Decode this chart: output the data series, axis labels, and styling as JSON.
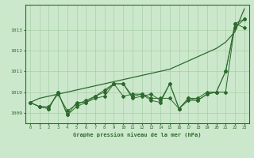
{
  "x": [
    0,
    1,
    2,
    3,
    4,
    5,
    6,
    7,
    8,
    9,
    10,
    11,
    12,
    13,
    14,
    15,
    16,
    17,
    18,
    19,
    20,
    21,
    22,
    23
  ],
  "series1": [
    1009.5,
    1009.3,
    1009.2,
    1010.0,
    1008.9,
    1009.3,
    1009.5,
    1009.7,
    1009.8,
    1010.4,
    1010.4,
    1009.7,
    1009.8,
    1009.9,
    1009.6,
    1010.4,
    1009.2,
    1009.7,
    1009.6,
    1009.9,
    1010.0,
    1011.0,
    1013.3,
    1013.1
  ],
  "series2": [
    1009.5,
    1009.3,
    1009.3,
    1009.9,
    1009.1,
    1009.4,
    1009.6,
    1009.8,
    1010.1,
    1010.4,
    1009.8,
    1009.9,
    1009.9,
    1009.7,
    1009.7,
    1009.7,
    1009.2,
    1009.7,
    1009.7,
    1010.0,
    1010.0,
    1011.0,
    1013.1,
    1013.5
  ],
  "series3": [
    1009.5,
    1009.3,
    1009.2,
    1010.0,
    1008.9,
    1009.5,
    1009.5,
    1009.8,
    1010.0,
    1010.4,
    1010.4,
    1009.8,
    1009.9,
    1009.6,
    1009.5,
    1010.4,
    1009.2,
    1009.6,
    1009.6,
    1009.9,
    1010.0,
    1010.0,
    1013.3,
    1013.5
  ],
  "trend": [
    1009.5,
    1009.7,
    1009.8,
    1009.9,
    1010.0,
    1010.1,
    1010.2,
    1010.3,
    1010.4,
    1010.5,
    1010.6,
    1010.7,
    1010.8,
    1010.9,
    1011.0,
    1011.1,
    1011.3,
    1011.5,
    1011.7,
    1011.9,
    1012.1,
    1012.4,
    1012.9,
    1014.0
  ],
  "line_color": "#2d6a2d",
  "bg_color": "#cce8cc",
  "grid_color": "#a8cfa8",
  "title": "Graphe pression niveau de la mer (hPa)",
  "ylabel_ticks": [
    1009,
    1010,
    1011,
    1012,
    1013
  ],
  "ylim": [
    1008.5,
    1014.2
  ],
  "xlim": [
    -0.5,
    23.5
  ]
}
